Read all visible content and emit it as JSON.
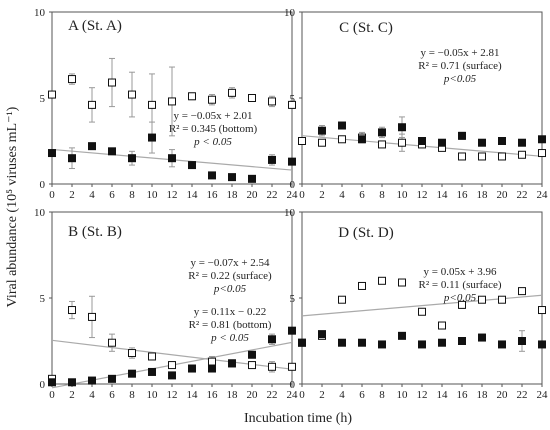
{
  "figure": {
    "ylabel": "Viral abundance (10⁵ viruses mL⁻¹)",
    "xlabel": "Incubation time (h)"
  },
  "chart_data": [
    {
      "type": "scatter",
      "panel": "A (St. A)",
      "title": "A (St. A)",
      "x_ticks": [
        0,
        2,
        4,
        6,
        8,
        10,
        12,
        14,
        16,
        18,
        20,
        22,
        24
      ],
      "y_ticks": [
        0,
        5,
        10
      ],
      "xlim": [
        0,
        24
      ],
      "ylim": [
        0,
        10
      ],
      "grid": false,
      "series": [
        {
          "marker": "open-square",
          "x": [
            0,
            2,
            4,
            6,
            8,
            10,
            12,
            14,
            16,
            18,
            20,
            22,
            24
          ],
          "y": [
            5.2,
            6.1,
            4.6,
            5.9,
            5.2,
            4.6,
            4.8,
            5.1,
            4.9,
            5.3,
            5.0,
            4.8,
            4.6
          ],
          "err": [
            0,
            0.3,
            1.0,
            1.4,
            1.3,
            1.8,
            2.0,
            0.2,
            0.3,
            0.3,
            0.2,
            0.3,
            0.2
          ]
        },
        {
          "marker": "filled-square",
          "x": [
            0,
            2,
            4,
            6,
            8,
            10,
            12,
            14,
            16,
            18,
            20,
            22,
            24
          ],
          "y": [
            1.8,
            1.5,
            2.2,
            1.9,
            1.5,
            2.7,
            1.5,
            1.1,
            0.5,
            0.4,
            0.3,
            1.4,
            1.3
          ],
          "err": [
            0,
            0.6,
            0,
            0,
            0.4,
            0.9,
            0.5,
            0,
            0,
            0,
            0,
            0.3,
            0
          ]
        }
      ],
      "fits": [
        {
          "slope": -0.05,
          "intercept": 2.01,
          "label_lines": [
            "y = −0.05x + 2.01",
            "R² = 0.345 (bottom)",
            "p < 0.05"
          ]
        }
      ]
    },
    {
      "type": "scatter",
      "panel": "C (St. C)",
      "title": "C (St. C)",
      "x_ticks": [
        0,
        2,
        4,
        6,
        8,
        10,
        12,
        14,
        16,
        18,
        20,
        22,
        24
      ],
      "y_ticks": [
        0,
        5,
        10
      ],
      "xlim": [
        0,
        24
      ],
      "ylim": [
        0,
        10
      ],
      "grid": false,
      "series": [
        {
          "marker": "open-square",
          "x": [
            0,
            2,
            4,
            6,
            8,
            10,
            12,
            14,
            16,
            18,
            20,
            22,
            24
          ],
          "y": [
            2.5,
            2.4,
            2.6,
            2.7,
            2.3,
            2.4,
            2.3,
            2.1,
            1.6,
            1.6,
            1.6,
            1.7,
            1.8
          ],
          "err": [
            0,
            0,
            0,
            0.3,
            0,
            0.5,
            0,
            0,
            0,
            0,
            0,
            0,
            0
          ]
        },
        {
          "marker": "filled-square",
          "x": [
            2,
            4,
            6,
            8,
            10,
            12,
            14,
            16,
            18,
            20,
            22,
            24
          ],
          "y": [
            3.1,
            3.4,
            2.6,
            3.0,
            3.3,
            2.5,
            2.4,
            2.8,
            2.4,
            2.5,
            2.4,
            2.6
          ],
          "err": [
            0.3,
            0,
            0,
            0.3,
            0.6,
            0,
            0,
            0.2,
            0,
            0,
            0,
            0
          ]
        }
      ],
      "fits": [
        {
          "slope": -0.05,
          "intercept": 2.81,
          "label_lines": [
            "y = −0.05x + 2.81",
            "R² = 0.71 (surface)",
            "p<0.05"
          ]
        }
      ]
    },
    {
      "type": "scatter",
      "panel": "B (St. B)",
      "title": "B (St. B)",
      "x_ticks": [
        0,
        2,
        4,
        6,
        8,
        10,
        12,
        14,
        16,
        18,
        20,
        22,
        24
      ],
      "y_ticks": [
        0,
        5,
        10
      ],
      "xlim": [
        0,
        24
      ],
      "ylim": [
        0,
        10
      ],
      "grid": false,
      "series": [
        {
          "marker": "open-square",
          "x": [
            0,
            2,
            4,
            6,
            8,
            10,
            12,
            14,
            16,
            18,
            20,
            22,
            24
          ],
          "y": [
            0.3,
            4.3,
            3.9,
            2.4,
            1.8,
            1.6,
            1.1,
            0.9,
            1.3,
            1.2,
            1.1,
            1.0,
            1.0
          ],
          "err": [
            0,
            0.5,
            1.2,
            0.5,
            0.3,
            0,
            0,
            0,
            0.3,
            0.2,
            0,
            0.3,
            0
          ]
        },
        {
          "marker": "filled-square",
          "x": [
            0,
            2,
            4,
            6,
            8,
            10,
            12,
            14,
            16,
            18,
            20,
            22,
            24
          ],
          "y": [
            0.1,
            0.1,
            0.2,
            0.3,
            0.6,
            0.7,
            0.5,
            0.9,
            0.9,
            1.2,
            1.7,
            2.6,
            3.1
          ],
          "err": [
            0,
            0,
            0,
            0,
            0,
            0,
            0,
            0,
            0,
            0,
            0,
            0.3,
            0
          ]
        }
      ],
      "fits": [
        {
          "slope": -0.07,
          "intercept": 2.54,
          "label_lines": [
            "y = −0.07x + 2.54",
            "R² = 0.22 (surface)",
            "p<0.05"
          ]
        },
        {
          "slope": 0.11,
          "intercept": -0.22,
          "label_lines": [
            "y = 0.11x − 0.22",
            "R² = 0.81 (bottom)",
            "p < 0.05"
          ]
        }
      ]
    },
    {
      "type": "scatter",
      "panel": "D (St. D)",
      "title": "D (St. D)",
      "x_ticks": [
        0,
        2,
        4,
        6,
        8,
        10,
        12,
        14,
        16,
        18,
        20,
        22,
        24
      ],
      "y_ticks": [
        0,
        5,
        10
      ],
      "xlim": [
        0,
        24
      ],
      "ylim": [
        0,
        10
      ],
      "grid": false,
      "series": [
        {
          "marker": "open-square",
          "x": [
            0,
            2,
            4,
            6,
            8,
            10,
            12,
            14,
            16,
            18,
            20,
            22,
            24
          ],
          "y": [
            2.4,
            2.8,
            4.9,
            5.7,
            6.0,
            5.9,
            4.2,
            3.4,
            4.6,
            4.9,
            4.9,
            5.4,
            4.3
          ],
          "err": [
            0,
            0,
            0,
            0,
            0,
            0,
            0,
            0,
            0.2,
            0,
            0,
            0,
            0
          ]
        },
        {
          "marker": "filled-square",
          "x": [
            0,
            2,
            4,
            6,
            8,
            10,
            12,
            14,
            16,
            18,
            20,
            22,
            24
          ],
          "y": [
            2.4,
            2.9,
            2.4,
            2.4,
            2.3,
            2.8,
            2.3,
            2.4,
            2.5,
            2.7,
            2.3,
            2.5,
            2.3
          ],
          "err": [
            0,
            0,
            0,
            0,
            0,
            0,
            0,
            0,
            0,
            0.2,
            0,
            0.6,
            0
          ]
        }
      ],
      "fits": [
        {
          "slope": 0.05,
          "intercept": 3.96,
          "label_lines": [
            "y = 0.05x + 3.96",
            "R² = 0.11 (surface)",
            "p<0.05"
          ]
        }
      ]
    }
  ]
}
